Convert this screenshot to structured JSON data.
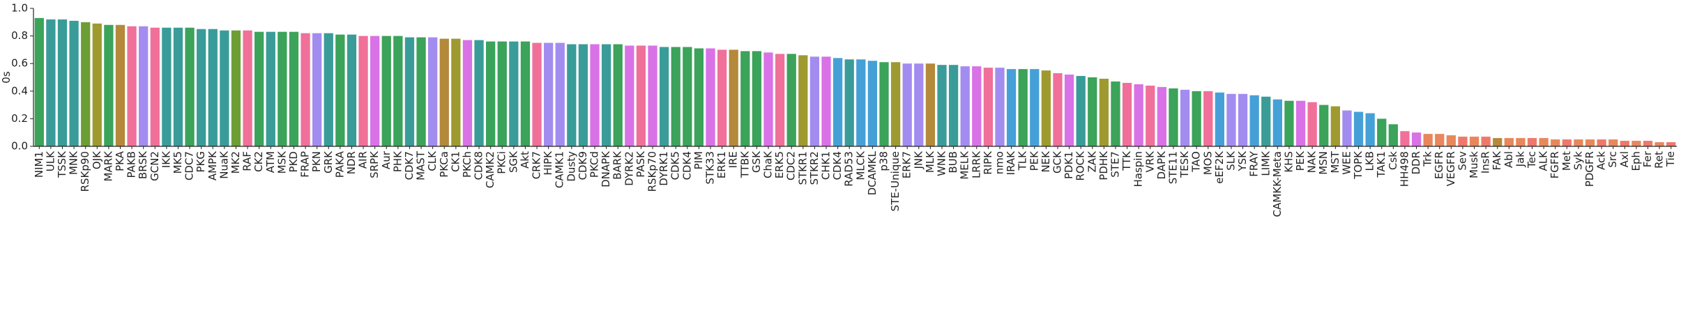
{
  "chart_data": {
    "type": "bar",
    "y_label": "0s",
    "categories": [
      "NIM1",
      "ULK",
      "TSSK",
      "MNK",
      "RSKp90",
      "OJK",
      "MARK",
      "PKA",
      "PAKB",
      "BRSK",
      "GCN2",
      "IKK",
      "MK5",
      "CDC7",
      "PKG",
      "AMPK",
      "NuaK",
      "MK2",
      "RAF",
      "CK2",
      "ATM",
      "MSK",
      "PKD",
      "FRAP",
      "PKN",
      "GRK",
      "PAKA",
      "NDR",
      "AIR",
      "SRPK",
      "Aur",
      "PHK",
      "CDK7",
      "MAST",
      "CLK",
      "PKCa",
      "CK1",
      "PKCh",
      "CDK8",
      "CAMK2",
      "PKCi",
      "SGK",
      "Akt",
      "CRK7",
      "HIPK",
      "CAMK1",
      "Dusty",
      "CDK9",
      "PKCd",
      "DNAPK",
      "BARK",
      "DYRK2",
      "PASK",
      "RSKp70",
      "DYRK1",
      "CDK5",
      "CDK4",
      "PIM",
      "STK33",
      "ERK1",
      "IRE",
      "TTBK",
      "GSK",
      "ChaK",
      "ERK5",
      "CDC2",
      "STKR1",
      "STKR2",
      "CHK1",
      "CDK4",
      "RAD53",
      "MLCK",
      "DCAMKL",
      "p38",
      "STE-Unique",
      "ERK7",
      "JNK",
      "MLK",
      "WNK",
      "BUB",
      "MELK",
      "LRRK",
      "RIPK",
      "nmo",
      "IRAK",
      "TLK",
      "PEK",
      "NEK",
      "GCK",
      "PDK1",
      "ROCK",
      "ZAK",
      "PDHK",
      "STE7",
      "TTK",
      "Haspin",
      "VRK",
      "DAPK",
      "STE11",
      "TESK",
      "TAO",
      "MOS",
      "eEF2K",
      "SLK",
      "YSK",
      "FRAY",
      "LIMK",
      "CAMKK-Meta",
      "KHS",
      "PEK",
      "NAK",
      "MSN",
      "MST",
      "WEE",
      "TOPK",
      "LKB",
      "TAK1",
      "Csk",
      "HH498",
      "DDR",
      "Trk",
      "EGFR",
      "VEGFR",
      "Sev",
      "Musk",
      "InsR",
      "FAK",
      "Abl",
      "Jak",
      "Tec",
      "ALK",
      "FGFR",
      "Met",
      "Syk",
      "PDGFR",
      "Ack",
      "Src",
      "Axl",
      "Eph",
      "Fer",
      "Ret",
      "Tie"
    ],
    "values": [
      0.93,
      0.92,
      0.92,
      0.91,
      0.9,
      0.89,
      0.88,
      0.88,
      0.87,
      0.87,
      0.86,
      0.86,
      0.86,
      0.86,
      0.85,
      0.85,
      0.84,
      0.84,
      0.84,
      0.83,
      0.83,
      0.83,
      0.83,
      0.82,
      0.82,
      0.82,
      0.81,
      0.81,
      0.8,
      0.8,
      0.8,
      0.8,
      0.79,
      0.79,
      0.79,
      0.78,
      0.78,
      0.77,
      0.77,
      0.76,
      0.76,
      0.76,
      0.76,
      0.75,
      0.75,
      0.75,
      0.74,
      0.74,
      0.74,
      0.74,
      0.74,
      0.73,
      0.73,
      0.73,
      0.72,
      0.72,
      0.72,
      0.71,
      0.71,
      0.7,
      0.7,
      0.69,
      0.69,
      0.68,
      0.67,
      0.67,
      0.66,
      0.65,
      0.65,
      0.64,
      0.63,
      0.63,
      0.62,
      0.61,
      0.61,
      0.6,
      0.6,
      0.6,
      0.59,
      0.59,
      0.58,
      0.58,
      0.57,
      0.57,
      0.56,
      0.56,
      0.56,
      0.55,
      0.53,
      0.52,
      0.51,
      0.5,
      0.49,
      0.47,
      0.46,
      0.45,
      0.44,
      0.43,
      0.42,
      0.41,
      0.4,
      0.4,
      0.39,
      0.38,
      0.38,
      0.37,
      0.36,
      0.34,
      0.33,
      0.33,
      0.32,
      0.3,
      0.29,
      0.26,
      0.25,
      0.24,
      0.2,
      0.16,
      0.11,
      0.1,
      0.09,
      0.09,
      0.08,
      0.07,
      0.07,
      0.07,
      0.06,
      0.06,
      0.06,
      0.06,
      0.06,
      0.05,
      0.05,
      0.05,
      0.05,
      0.05,
      0.05,
      0.04,
      0.04,
      0.04,
      0.03,
      0.03
    ],
    "colors": [
      "#3ba35a",
      "#3a9c98",
      "#3a9c98",
      "#3a9c98",
      "#6c9e35",
      "#9e9a30",
      "#3ba35a",
      "#b4893a",
      "#f0709a",
      "#a38cf0",
      "#f0709a",
      "#3a9c98",
      "#3a9c98",
      "#3ba35a",
      "#3a9c98",
      "#3a9c98",
      "#3a9c98",
      "#6c9e35",
      "#f0709a",
      "#3ba35a",
      "#3a9c98",
      "#3ba35a",
      "#3ba35a",
      "#f0709a",
      "#a38cf0",
      "#3a9c98",
      "#3ba35a",
      "#3a9c98",
      "#f0709a",
      "#d872e6",
      "#3ba35a",
      "#3ba35a",
      "#3a9c98",
      "#3ba35a",
      "#a38cf0",
      "#b4893a",
      "#9e9a30",
      "#d872e6",
      "#3a9c98",
      "#3ba35a",
      "#3ba35a",
      "#3a9c98",
      "#3ba35a",
      "#f0709a",
      "#a38cf0",
      "#a38cf0",
      "#3a9c98",
      "#3a9c98",
      "#d872e6",
      "#3a9c98",
      "#3ba35a",
      "#d872e6",
      "#f0709a",
      "#d872e6",
      "#3a9c98",
      "#3ba35a",
      "#3ba35a",
      "#3ba35a",
      "#d872e6",
      "#f0709a",
      "#b4893a",
      "#3ba35a",
      "#3ba35a",
      "#d872e6",
      "#f0709a",
      "#3ba35a",
      "#9e9a30",
      "#a38cf0",
      "#d872e6",
      "#46a0d8",
      "#3a9c98",
      "#46a0d8",
      "#46a0d8",
      "#3ba35a",
      "#9e9a30",
      "#a38cf0",
      "#a38cf0",
      "#b4893a",
      "#3a9c98",
      "#3a9c98",
      "#a38cf0",
      "#d872e6",
      "#f0709a",
      "#a38cf0",
      "#46a0d8",
      "#3ba35a",
      "#46a0d8",
      "#9e9a30",
      "#f0709a",
      "#d872e6",
      "#3a9c98",
      "#3ba35a",
      "#9e9a30",
      "#3ba35a",
      "#f0709a",
      "#d872e6",
      "#f0709a",
      "#d872e6",
      "#3ba35a",
      "#a38cf0",
      "#3ba35a",
      "#f0709a",
      "#46a0d8",
      "#a38cf0",
      "#a38cf0",
      "#46a0d8",
      "#3a9c98",
      "#46a0d8",
      "#3ba35a",
      "#d872e6",
      "#f0709a",
      "#3ba35a",
      "#9e9a30",
      "#a38cf0",
      "#46a0d8",
      "#46a0d8",
      "#3ba35a",
      "#3ba35a",
      "#f0709a",
      "#d872e6",
      "#e8875a",
      "#e8875a",
      "#e8875a",
      "#f0786a",
      "#e8875a",
      "#f0786a",
      "#b4893a",
      "#e8875a",
      "#e8875a",
      "#f0786a",
      "#e8875a",
      "#e8875a",
      "#f0786a",
      "#e8875a",
      "#e8875a",
      "#f0786a",
      "#e8875a",
      "#f0786a",
      "#e8875a",
      "#f0786a",
      "#e8875a",
      "#f0786a"
    ],
    "ylim": [
      0,
      1.0
    ],
    "yticks": [
      {
        "value": 0,
        "label": "0.0"
      },
      {
        "value": 0.2,
        "label": "0.2"
      },
      {
        "value": 0.4,
        "label": "0.4"
      },
      {
        "value": 0.6,
        "label": "0.6"
      },
      {
        "value": 0.8,
        "label": "0.8"
      },
      {
        "value": 1.0,
        "label": "1.0"
      }
    ],
    "grid": false
  }
}
